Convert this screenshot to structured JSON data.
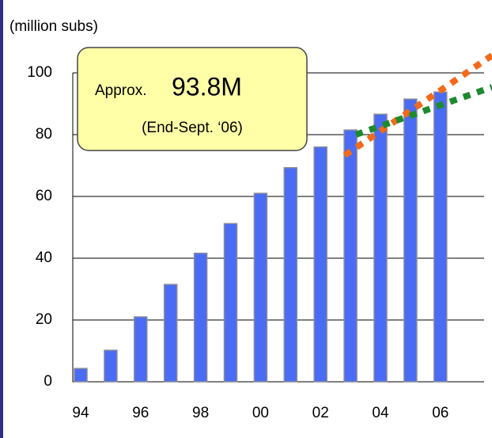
{
  "chart_data": {
    "type": "bar",
    "y_axis_label": "(million subs)",
    "annotation": {
      "prefix": "Approx.",
      "value_text": "93.8M",
      "note": "(End-Sept. ‘06)"
    },
    "categories": [
      "94",
      null,
      "96",
      null,
      "98",
      null,
      "00",
      null,
      "02",
      null,
      "04",
      null,
      "06"
    ],
    "values": [
      4.3,
      10.2,
      21.0,
      31.5,
      41.6,
      51.2,
      61.0,
      69.3,
      76.0,
      81.5,
      86.6,
      91.5,
      93.8
    ],
    "color": "#4a6cf4",
    "ylim": [
      0,
      100
    ],
    "yticks": [
      0,
      20,
      40,
      60,
      80,
      100
    ],
    "grid": true
  }
}
